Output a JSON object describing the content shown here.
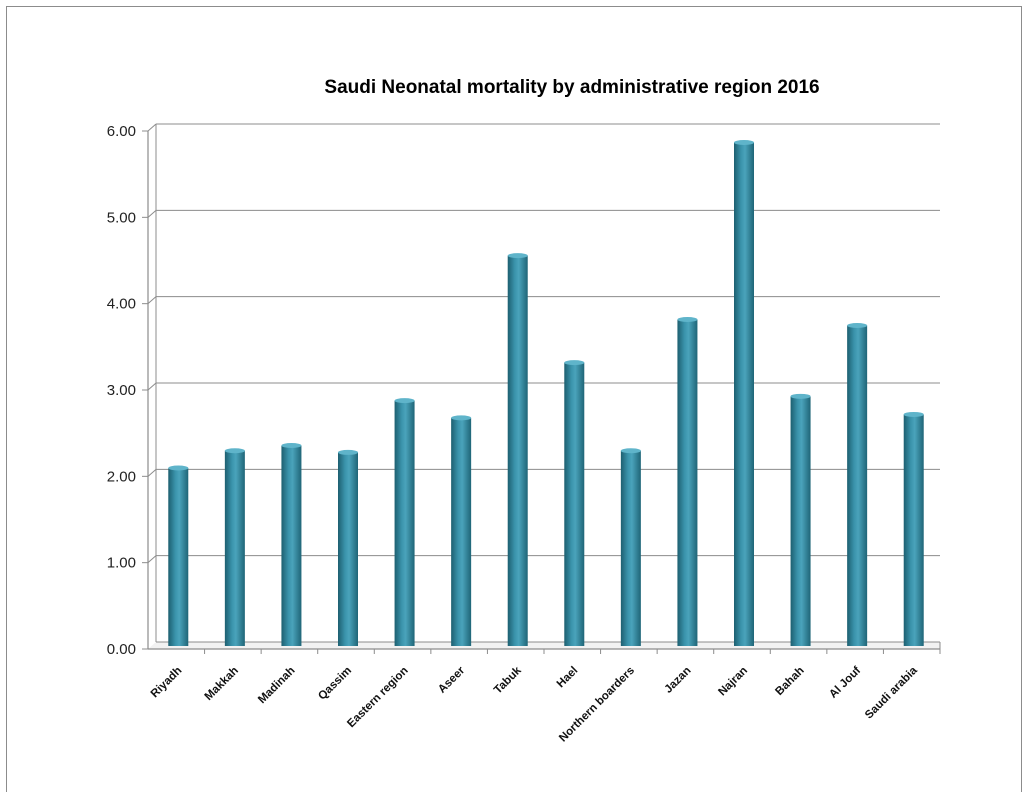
{
  "chart_data": {
    "type": "bar",
    "title": "Saudi Neonatal mortality by administrative region 2016",
    "xlabel": "",
    "ylabel": "",
    "ylim": [
      0,
      6
    ],
    "yticks": [
      "0.00",
      "1.00",
      "2.00",
      "3.00",
      "4.00",
      "5.00",
      "6.00"
    ],
    "grid": true,
    "legend": "none",
    "bar_color": "#31859c",
    "categories": [
      "Riyadh",
      "Makkah",
      "Madinah",
      "Qassim",
      "Eastern region",
      "Aseer",
      "Tabuk",
      "Hael",
      "Northern boarders",
      "Jazan",
      "Najran",
      "Bahah",
      "Al Jouf",
      "Saudi arabia"
    ],
    "values": [
      2.12,
      2.32,
      2.38,
      2.3,
      2.9,
      2.7,
      4.58,
      3.34,
      2.32,
      3.84,
      5.89,
      2.95,
      3.77,
      2.74
    ]
  }
}
